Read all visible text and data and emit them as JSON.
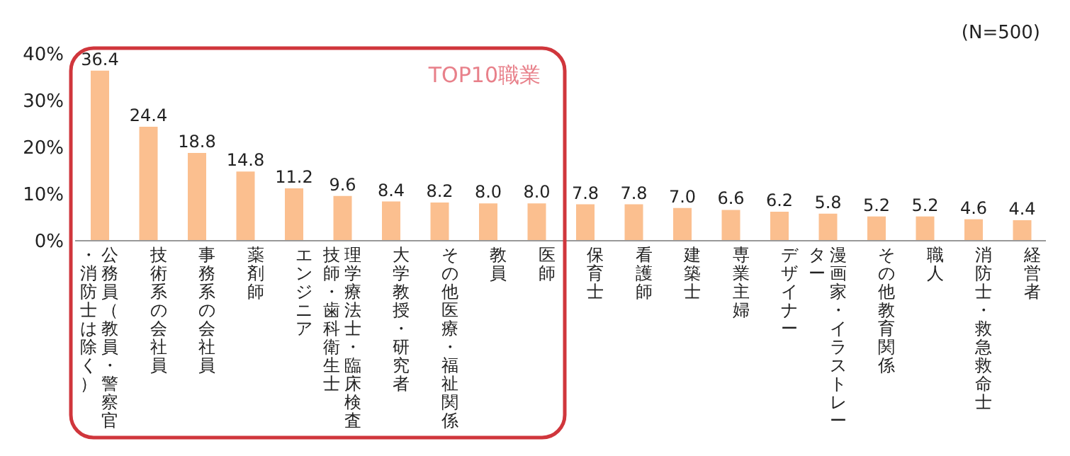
{
  "chart_data": {
    "type": "bar",
    "categories": [
      "公務員（教員・警察官・消防士は除く）",
      "技術系の会社員",
      "事務系の会社員",
      "薬剤師",
      "エンジニア",
      "理学療法士・臨床検査技師・歯科衛生士",
      "大学教授・研究者",
      "その他医療・福祉関係",
      "教員",
      "医師",
      "保育士",
      "看護師",
      "建築士",
      "専業主婦",
      "デザイナー",
      "漫画家・イラストレーター",
      "その他教育関係",
      "職人",
      "消防士・救急救命士",
      "経営者"
    ],
    "values": [
      36.4,
      24.4,
      18.8,
      14.8,
      11.2,
      9.6,
      8.4,
      8.2,
      8.0,
      8.0,
      7.8,
      7.8,
      7.0,
      6.6,
      6.2,
      5.8,
      5.2,
      5.2,
      4.6,
      4.4
    ],
    "value_labels": [
      "36.4",
      "24.4",
      "18.8",
      "14.8",
      "11.2",
      "9.6",
      "8.4",
      "8.2",
      "8.0",
      "8.0",
      "7.8",
      "7.8",
      "7.0",
      "6.6",
      "6.2",
      "5.8",
      "5.2",
      "5.2",
      "4.6",
      "4.4"
    ],
    "color": "#fbbf8f",
    "ylim": [
      0,
      40
    ],
    "yticks": [
      {
        "value": 0,
        "label": "0%"
      },
      {
        "value": 10,
        "label": "10%"
      },
      {
        "value": 20,
        "label": "20%"
      },
      {
        "value": 30,
        "label": "30%"
      },
      {
        "value": 40,
        "label": "40%"
      }
    ],
    "annotations": [
      "(N=500)",
      "TOP10職業"
    ]
  }
}
